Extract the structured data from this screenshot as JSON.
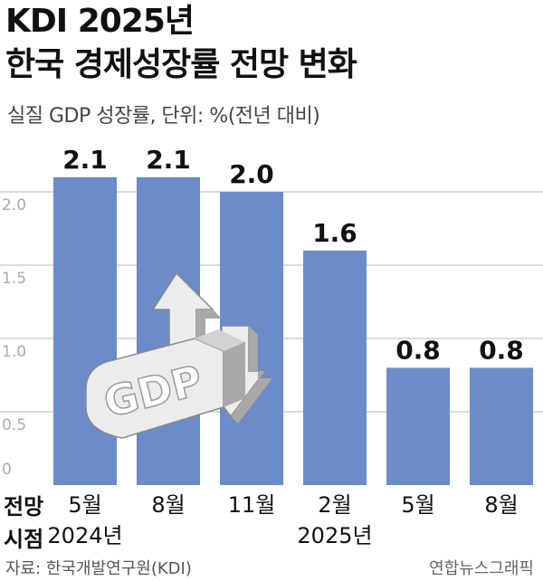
{
  "title_lines": [
    "KDI 2025년",
    "한국 경제성장률 전망 변화"
  ],
  "subtitle": "실질 GDP 성장률, 단위: %(전년 대비)",
  "period_label_lines": [
    "전망",
    "시점"
  ],
  "source": "자료: 한국개발연구원(KDI)",
  "credit": "연합뉴스그래픽",
  "colors": {
    "bar": "#6b8bc9",
    "grid": "#c8c8c8",
    "tick": "#aaaaaa"
  },
  "chart_data": {
    "type": "bar",
    "categories": [
      "5월",
      "8월",
      "11월",
      "2월",
      "5월",
      "8월"
    ],
    "year_groups": [
      {
        "label": "2024년",
        "categories": [
          0,
          1,
          2
        ]
      },
      {
        "label": "2025년",
        "categories": [
          3,
          4,
          5
        ]
      }
    ],
    "values": [
      2.1,
      2.1,
      2.0,
      1.6,
      0.8,
      0.8
    ],
    "data_labels": [
      "2.1",
      "2.1",
      "2.0",
      "1.6",
      "0.8",
      "0.8"
    ],
    "ylim": [
      0,
      2.1
    ],
    "yticks": [
      0,
      0.5,
      1.0,
      1.5,
      2.0
    ],
    "ytick_labels": [
      "0",
      "0.5",
      "1.0",
      "1.5",
      "2.0"
    ],
    "grid": true,
    "illustration": "gdp-arrows-illustration"
  }
}
